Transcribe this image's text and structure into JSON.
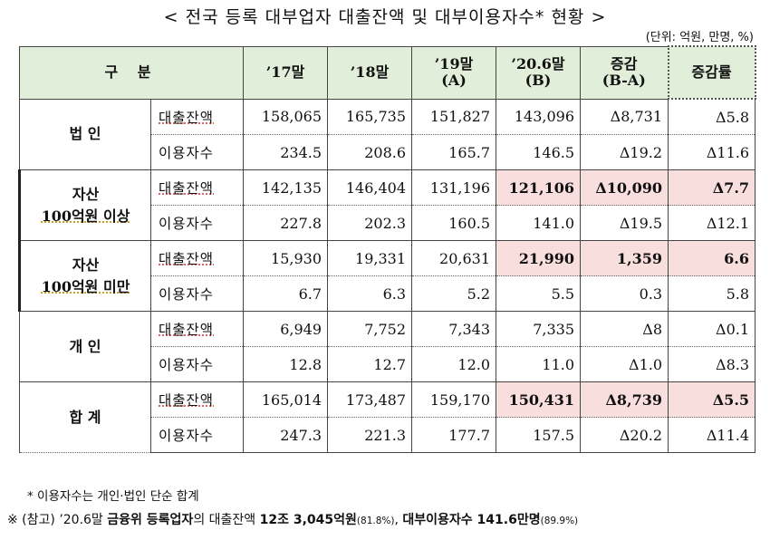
{
  "title": "< 전국 등록 대부업자 대출잔액 및 대부이용자수* 현황 >",
  "unit": "(단위: 억원, 만명, %)",
  "headers": {
    "category": "구   분",
    "c17": "’17말",
    "c18": "’18말",
    "c19_a": "’19말",
    "c19_b": "(A)",
    "c20_a": "’20.6말",
    "c20_b": "(B)",
    "diff_a": "증감",
    "diff_b": "(B-A)",
    "rate": "증감률"
  },
  "labels": {
    "loan": "대출잔액",
    "users": "이용자수"
  },
  "groups": [
    {
      "name_1": "법 인",
      "name_2": "",
      "loan": [
        "158,065",
        "165,735",
        "151,827",
        "143,096",
        "Δ8,731",
        "Δ5.8"
      ],
      "users": [
        "234.5",
        "208.6",
        "165.7",
        "146.5",
        "Δ19.2",
        "Δ11.6"
      ]
    },
    {
      "name_1": "자산",
      "name_2": "100억원 이상",
      "loan": [
        "142,135",
        "146,404",
        "131,196",
        "121,106",
        "Δ10,090",
        "Δ7.7"
      ],
      "users": [
        "227.8",
        "202.3",
        "160.5",
        "141.0",
        "Δ19.5",
        "Δ12.1"
      ]
    },
    {
      "name_1": "자산",
      "name_2": "100억원 미만",
      "loan": [
        "15,930",
        "19,331",
        "20,631",
        "21,990",
        "1,359",
        "6.6"
      ],
      "users": [
        "6.7",
        "6.3",
        "5.2",
        "5.5",
        "0.3",
        "5.8"
      ]
    },
    {
      "name_1": "개 인",
      "name_2": "",
      "loan": [
        "6,949",
        "7,752",
        "7,343",
        "7,335",
        "Δ8",
        "Δ0.1"
      ],
      "users": [
        "12.8",
        "12.7",
        "12.0",
        "11.0",
        "Δ1.0",
        "Δ8.3"
      ]
    },
    {
      "name_1": "합 계",
      "name_2": "",
      "loan": [
        "165,014",
        "173,487",
        "159,170",
        "150,431",
        "Δ8,739",
        "Δ5.5"
      ],
      "users": [
        "247.3",
        "221.3",
        "177.7",
        "157.5",
        "Δ20.2",
        "Δ11.4"
      ]
    }
  ],
  "footnote1": "* 이용자수는 개인·법인 단순 합계",
  "footnote2": {
    "prefix": "※ (참고) ’20.6말 ",
    "b1": "금융위 등록업자",
    "mid1": "의 대출잔액 ",
    "b2": "12조 3,045억원",
    "s1": "(81.8%)",
    "mid2": ", ",
    "b3": "대부이용자수 141.6만명",
    "s2": "(89.9%)"
  },
  "colors": {
    "header_bg": "#e1eed9",
    "highlight_bg": "#f9dede"
  }
}
